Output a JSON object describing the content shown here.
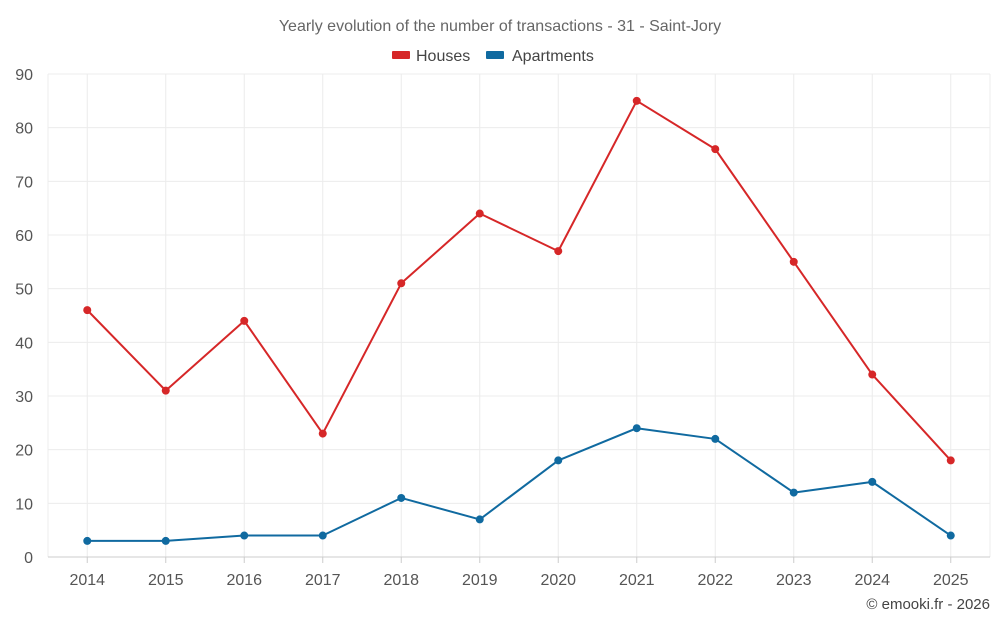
{
  "chart_data": {
    "type": "line",
    "title": "Yearly evolution of the number of transactions - 31 - Saint-Jory",
    "categories": [
      "2014",
      "2015",
      "2016",
      "2017",
      "2018",
      "2019",
      "2020",
      "2021",
      "2022",
      "2023",
      "2024",
      "2025"
    ],
    "series": [
      {
        "name": "Houses",
        "color": "#d62728",
        "values": [
          46,
          31,
          44,
          23,
          51,
          64,
          57,
          85,
          76,
          55,
          34,
          18
        ]
      },
      {
        "name": "Apartments",
        "color": "#106aa0",
        "values": [
          3,
          3,
          4,
          4,
          11,
          7,
          18,
          24,
          22,
          12,
          14,
          4
        ]
      }
    ],
    "ylim": [
      0,
      90
    ],
    "yticks": [
      0,
      10,
      20,
      30,
      40,
      50,
      60,
      70,
      80,
      90
    ],
    "xlabel": "",
    "ylabel": "",
    "grid": true,
    "legend_position": "top-center"
  },
  "credit": "© emooki.fr - 2026"
}
